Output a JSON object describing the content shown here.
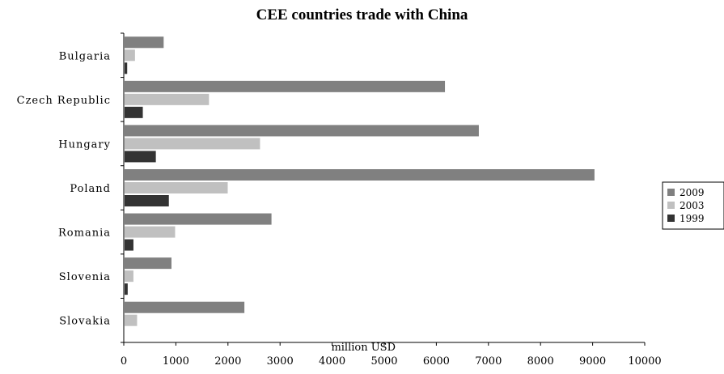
{
  "chart_data": {
    "type": "bar",
    "orientation": "horizontal",
    "title": "CEE countries trade with China",
    "xlabel": "million USD",
    "ylabel": "",
    "categories": [
      "Bulgaria",
      "Czech Republic",
      "Hungary",
      "Poland",
      "Romania",
      "Slovenia",
      "Slovakia"
    ],
    "series": [
      {
        "name": "2009",
        "color": "#808080",
        "values": [
          750,
          6150,
          6800,
          9020,
          2820,
          900,
          2300
        ]
      },
      {
        "name": "2003",
        "color": "#c0c0c0",
        "values": [
          200,
          1620,
          2600,
          1980,
          970,
          170,
          240
        ]
      },
      {
        "name": "1999",
        "color": "#333333",
        "values": [
          50,
          350,
          600,
          850,
          170,
          60,
          0
        ]
      }
    ],
    "xlim": [
      0,
      10000
    ],
    "xticks": [
      "0",
      "1000",
      "2000",
      "3000",
      "4000",
      "5000",
      "6000",
      "7000",
      "8000",
      "9000",
      "10000"
    ],
    "grid": false,
    "legend_position": "right"
  }
}
